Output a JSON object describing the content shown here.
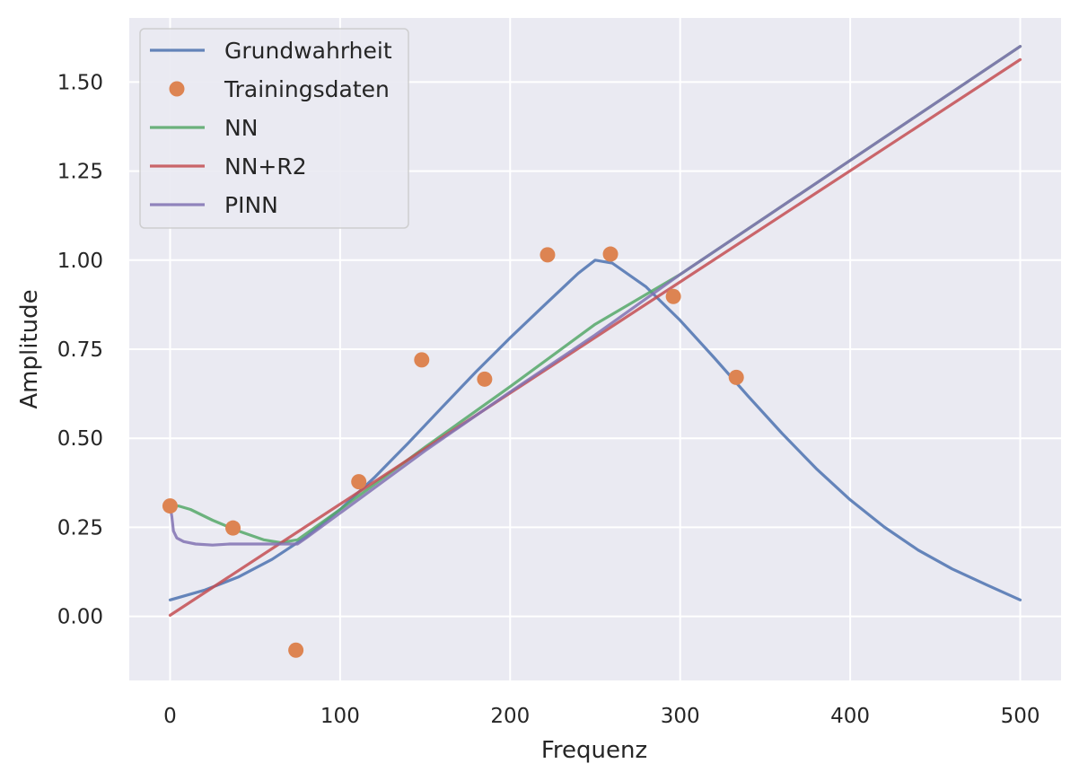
{
  "chart_data": {
    "type": "line",
    "title": "",
    "xlabel": "Frequenz",
    "ylabel": "Amplitude",
    "xlim": [
      -24,
      524
    ],
    "ylim": [
      -0.18,
      1.68
    ],
    "xticks": [
      0,
      100,
      200,
      300,
      400,
      500
    ],
    "xtick_labels": [
      "0",
      "100",
      "200",
      "300",
      "400",
      "500"
    ],
    "yticks": [
      0.0,
      0.25,
      0.5,
      0.75,
      1.0,
      1.25,
      1.5
    ],
    "ytick_labels": [
      "0.00",
      "0.25",
      "0.50",
      "0.75",
      "1.00",
      "1.25",
      "1.50"
    ],
    "grid": true,
    "legend_position": "top-left",
    "background": "#eaeaf2",
    "series": [
      {
        "name": "Grundwahrheit",
        "kind": "line",
        "color": "#4c72b0",
        "x": [
          0,
          20,
          40,
          60,
          80,
          100,
          120,
          140,
          160,
          180,
          200,
          220,
          240,
          250,
          260,
          280,
          300,
          320,
          340,
          360,
          380,
          400,
          420,
          440,
          460,
          480,
          500
        ],
        "y": [
          0.046,
          0.073,
          0.11,
          0.16,
          0.223,
          0.3,
          0.389,
          0.486,
          0.587,
          0.687,
          0.782,
          0.873,
          0.963,
          1.0,
          0.992,
          0.925,
          0.831,
          0.726,
          0.618,
          0.513,
          0.415,
          0.327,
          0.251,
          0.186,
          0.133,
          0.089,
          0.046
        ]
      },
      {
        "name": "Trainingsdaten",
        "kind": "scatter",
        "color": "#dd8452",
        "x": [
          0,
          37,
          74,
          111,
          148,
          185,
          222,
          259,
          296,
          333
        ],
        "y": [
          0.31,
          0.248,
          -0.095,
          0.378,
          0.72,
          0.666,
          1.015,
          1.017,
          0.898,
          0.671
        ]
      },
      {
        "name": "NN",
        "kind": "line",
        "color": "#55a868",
        "x": [
          0,
          5,
          12,
          25,
          40,
          55,
          65,
          75,
          100,
          150,
          200,
          250,
          300,
          400,
          500
        ],
        "y": [
          0.31,
          0.31,
          0.3,
          0.27,
          0.24,
          0.215,
          0.207,
          0.215,
          0.3,
          0.475,
          0.645,
          0.82,
          0.96,
          1.28,
          1.6
        ]
      },
      {
        "name": "NN+R2",
        "kind": "line",
        "color": "#c44e52",
        "x": [
          0,
          500
        ],
        "y": [
          0.003,
          1.563
        ]
      },
      {
        "name": "PINN",
        "kind": "line",
        "color": "#8172b3",
        "x": [
          0,
          1,
          2,
          4,
          8,
          15,
          25,
          35,
          50,
          60,
          70,
          75,
          80,
          100,
          150,
          200,
          250,
          300,
          400,
          500
        ],
        "y": [
          0.31,
          0.28,
          0.24,
          0.22,
          0.21,
          0.203,
          0.2,
          0.203,
          0.203,
          0.203,
          0.203,
          0.203,
          0.22,
          0.29,
          0.465,
          0.63,
          0.79,
          0.96,
          1.28,
          1.6
        ]
      }
    ]
  }
}
